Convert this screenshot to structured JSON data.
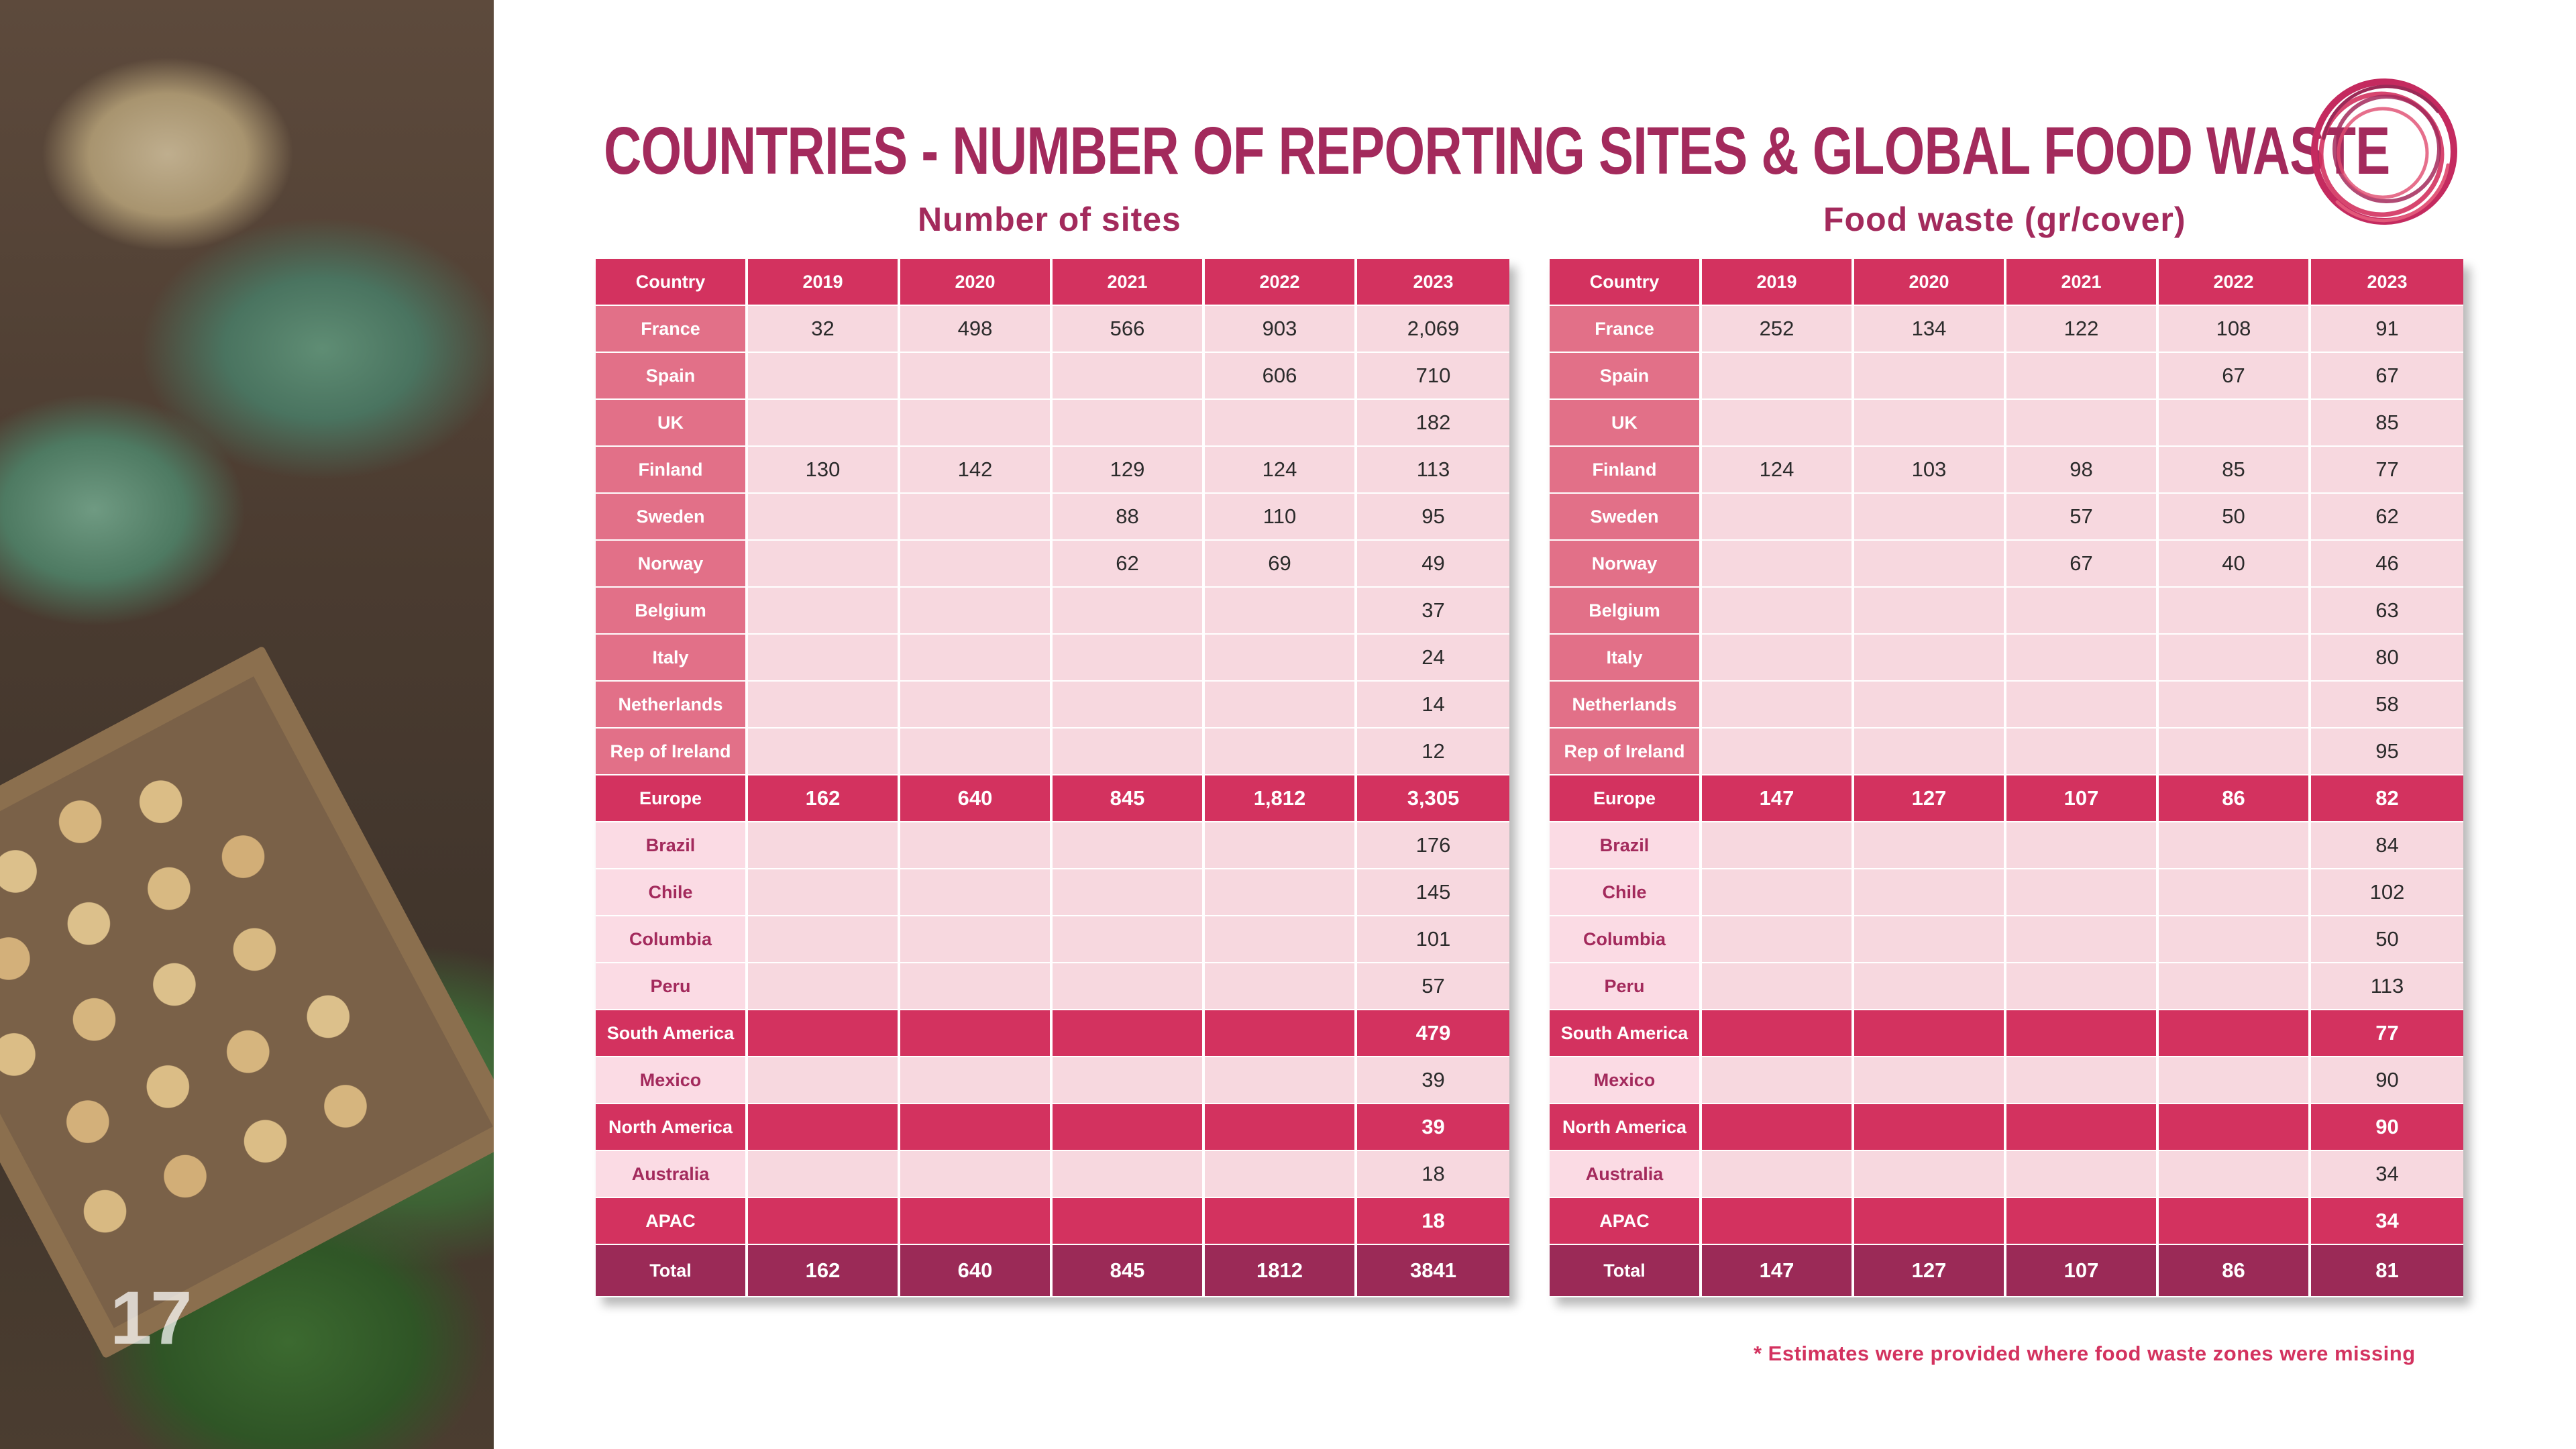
{
  "title": "COUNTRIES - NUMBER OF REPORTING SITES & GLOBAL FOOD WASTE",
  "page_number": "17",
  "footnote": "* Estimates were provided where food waste zones were missing",
  "colors": {
    "brand": "#a32a5c",
    "header": "#d3325f",
    "total": "#9b2a57",
    "cell": "#f7d8df"
  },
  "sites": {
    "subtitle": "Number of sites",
    "columns": [
      "Country",
      "2019",
      "2020",
      "2021",
      "2022",
      "2023"
    ],
    "rows": [
      {
        "type": "country",
        "cells": [
          "France",
          "32",
          "498",
          "566",
          "903",
          "2,069"
        ]
      },
      {
        "type": "country",
        "cells": [
          "Spain",
          "",
          "",
          "",
          "606",
          "710"
        ]
      },
      {
        "type": "country",
        "cells": [
          "UK",
          "",
          "",
          "",
          "",
          "182"
        ]
      },
      {
        "type": "country",
        "cells": [
          "Finland",
          "130",
          "142",
          "129",
          "124",
          "113"
        ]
      },
      {
        "type": "country",
        "cells": [
          "Sweden",
          "",
          "",
          "88",
          "110",
          "95"
        ]
      },
      {
        "type": "country",
        "cells": [
          "Norway",
          "",
          "",
          "62",
          "69",
          "49"
        ]
      },
      {
        "type": "country",
        "cells": [
          "Belgium",
          "",
          "",
          "",
          "",
          "37"
        ]
      },
      {
        "type": "country",
        "cells": [
          "Italy",
          "",
          "",
          "",
          "",
          "24"
        ]
      },
      {
        "type": "country",
        "cells": [
          "Netherlands",
          "",
          "",
          "",
          "",
          "14"
        ]
      },
      {
        "type": "country",
        "cells": [
          "Rep of Ireland",
          "",
          "",
          "",
          "",
          "12"
        ]
      },
      {
        "type": "region",
        "cells": [
          "Europe",
          "162",
          "640",
          "845",
          "1,812",
          "3,305"
        ]
      },
      {
        "type": "country-light",
        "cells": [
          "Brazil",
          "",
          "",
          "",
          "",
          "176"
        ]
      },
      {
        "type": "country-light",
        "cells": [
          "Chile",
          "",
          "",
          "",
          "",
          "145"
        ]
      },
      {
        "type": "country-light",
        "cells": [
          "Columbia",
          "",
          "",
          "",
          "",
          "101"
        ]
      },
      {
        "type": "country-light",
        "cells": [
          "Peru",
          "",
          "",
          "",
          "",
          "57"
        ]
      },
      {
        "type": "region",
        "cells": [
          "South America",
          "",
          "",
          "",
          "",
          "479"
        ]
      },
      {
        "type": "country-light",
        "cells": [
          "Mexico",
          "",
          "",
          "",
          "",
          "39"
        ]
      },
      {
        "type": "region",
        "cells": [
          "North America",
          "",
          "",
          "",
          "",
          "39"
        ]
      },
      {
        "type": "country-light",
        "cells": [
          "Australia",
          "",
          "",
          "",
          "",
          "18"
        ]
      },
      {
        "type": "region",
        "cells": [
          "APAC",
          "",
          "",
          "",
          "",
          "18"
        ]
      },
      {
        "type": "total",
        "cells": [
          "Total",
          "162",
          "640",
          "845",
          "1812",
          "3841"
        ]
      }
    ]
  },
  "waste": {
    "subtitle": "Food waste (gr/cover)",
    "columns": [
      "Country",
      "2019",
      "2020",
      "2021",
      "2022",
      "2023"
    ],
    "rows": [
      {
        "type": "country",
        "cells": [
          "France",
          "252",
          "134",
          "122",
          "108",
          "91"
        ]
      },
      {
        "type": "country",
        "cells": [
          "Spain",
          "",
          "",
          "",
          "67",
          "67"
        ]
      },
      {
        "type": "country",
        "cells": [
          "UK",
          "",
          "",
          "",
          "",
          "85"
        ]
      },
      {
        "type": "country",
        "cells": [
          "Finland",
          "124",
          "103",
          "98",
          "85",
          "77"
        ]
      },
      {
        "type": "country",
        "cells": [
          "Sweden",
          "",
          "",
          "57",
          "50",
          "62"
        ]
      },
      {
        "type": "country",
        "cells": [
          "Norway",
          "",
          "",
          "67",
          "40",
          "46"
        ]
      },
      {
        "type": "country",
        "cells": [
          "Belgium",
          "",
          "",
          "",
          "",
          "63"
        ]
      },
      {
        "type": "country",
        "cells": [
          "Italy",
          "",
          "",
          "",
          "",
          "80"
        ]
      },
      {
        "type": "country",
        "cells": [
          "Netherlands",
          "",
          "",
          "",
          "",
          "58"
        ]
      },
      {
        "type": "country",
        "cells": [
          "Rep of Ireland",
          "",
          "",
          "",
          "",
          "95"
        ]
      },
      {
        "type": "region",
        "cells": [
          "Europe",
          "147",
          "127",
          "107",
          "86",
          "82"
        ]
      },
      {
        "type": "country-light",
        "cells": [
          "Brazil",
          "",
          "",
          "",
          "",
          "84"
        ]
      },
      {
        "type": "country-light",
        "cells": [
          "Chile",
          "",
          "",
          "",
          "",
          "102"
        ]
      },
      {
        "type": "country-light",
        "cells": [
          "Columbia",
          "",
          "",
          "",
          "",
          "50"
        ]
      },
      {
        "type": "country-light",
        "cells": [
          "Peru",
          "",
          "",
          "",
          "",
          "113"
        ]
      },
      {
        "type": "region",
        "cells": [
          "South America",
          "",
          "",
          "",
          "",
          "77"
        ]
      },
      {
        "type": "country-light",
        "cells": [
          "Mexico",
          "",
          "",
          "",
          "",
          "90"
        ]
      },
      {
        "type": "region",
        "cells": [
          "North America",
          "",
          "",
          "",
          "",
          "90"
        ]
      },
      {
        "type": "country-light",
        "cells": [
          "Australia",
          "",
          "",
          "",
          "",
          "34"
        ]
      },
      {
        "type": "region",
        "cells": [
          "APAC",
          "",
          "",
          "",
          "",
          "34"
        ]
      },
      {
        "type": "total",
        "cells": [
          "Total",
          "147",
          "127",
          "107",
          "86",
          "81"
        ]
      }
    ]
  }
}
